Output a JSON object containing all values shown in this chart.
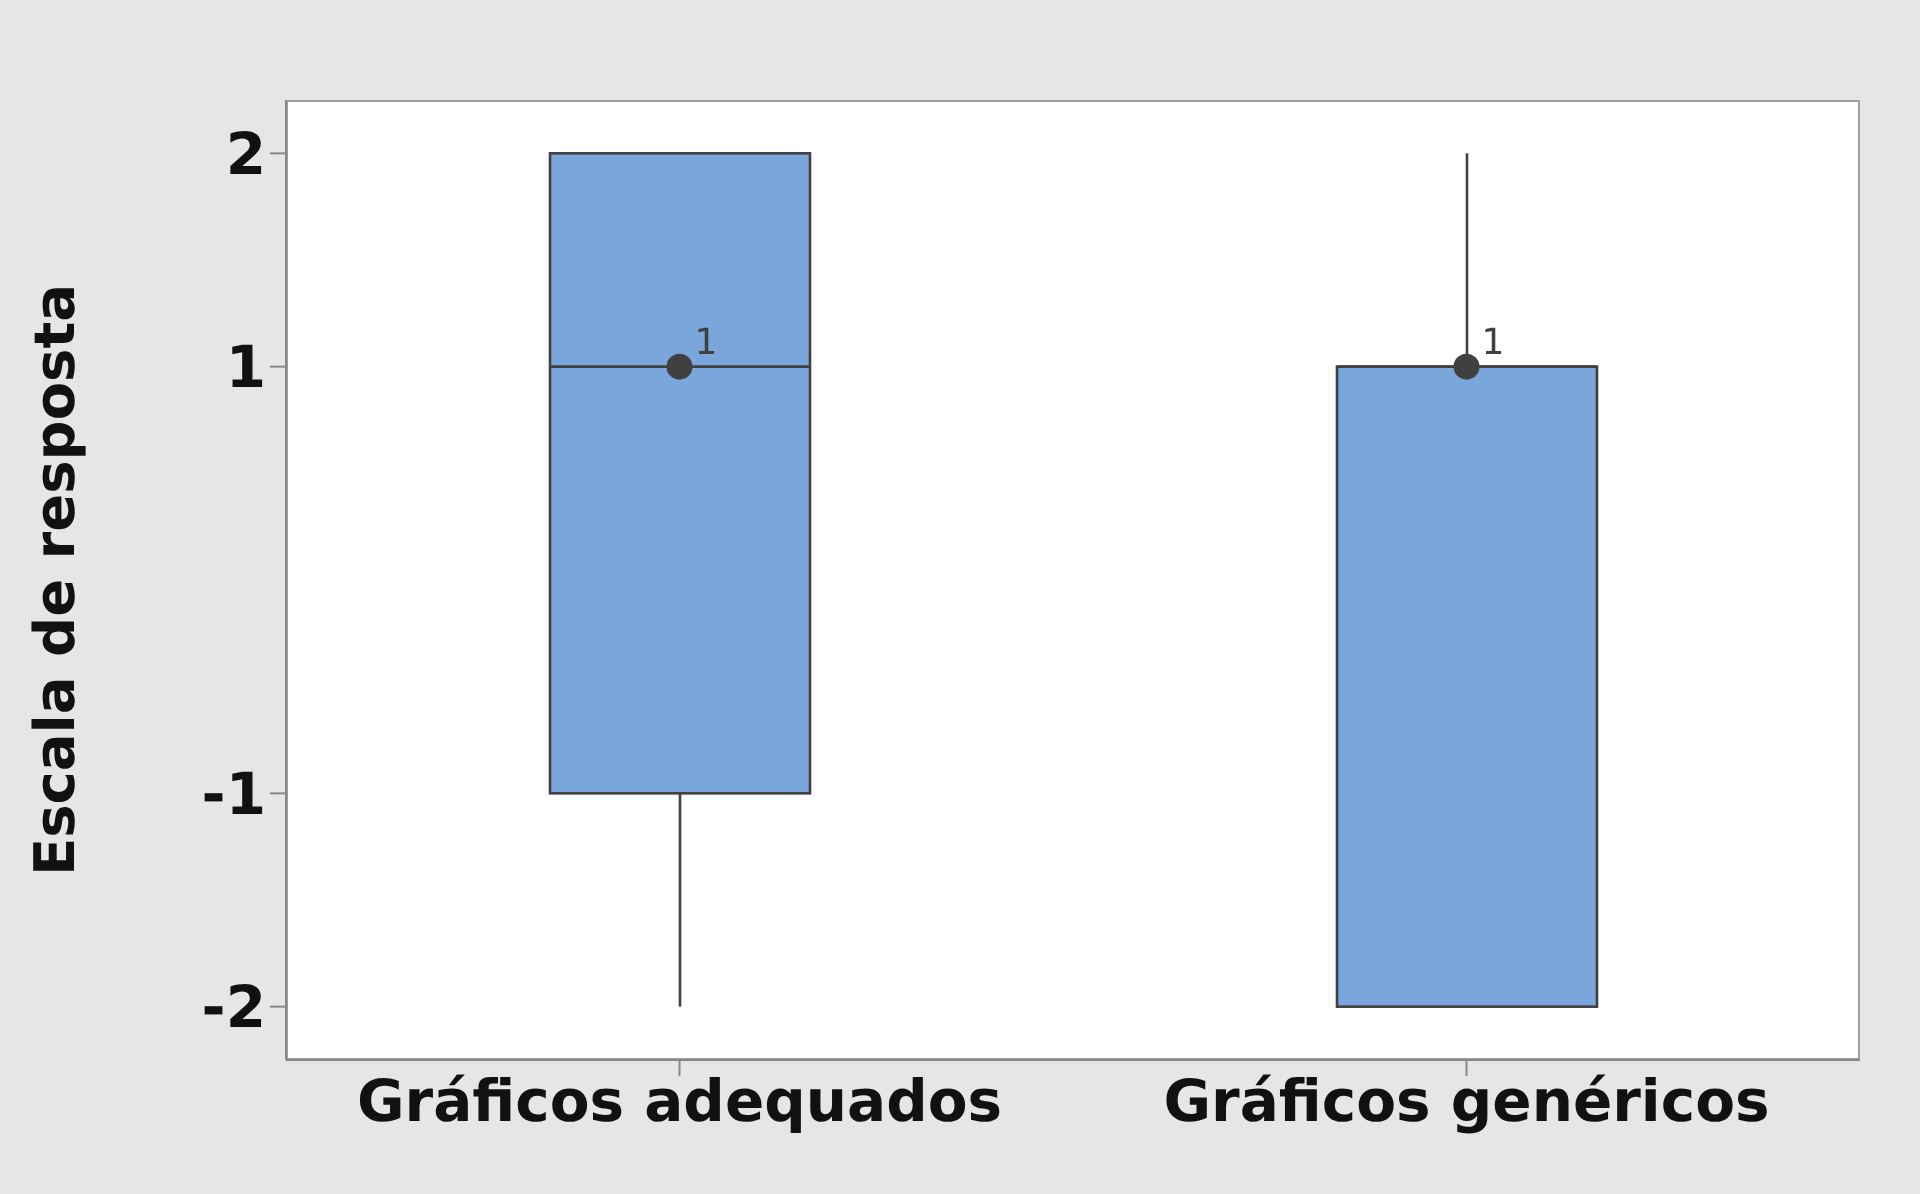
{
  "chart_data": {
    "type": "box",
    "ylabel": "Escala de resposta",
    "categories": [
      "Gráficos adequados",
      "Gráficos genéricos"
    ],
    "boxes": [
      {
        "low": -2,
        "q1": -1,
        "median": 1,
        "q3": 2,
        "high": 2,
        "mean": 1
      },
      {
        "low": -2,
        "q1": -2,
        "median": 1,
        "q3": 1,
        "high": 2,
        "mean": 1
      }
    ],
    "color": "#7ba6db",
    "ylim": [
      -2.25,
      2.25
    ],
    "yticks": [
      -2,
      -1,
      1,
      2
    ],
    "grid": false,
    "legend": false,
    "annotations": [
      "1",
      "1"
    ]
  }
}
